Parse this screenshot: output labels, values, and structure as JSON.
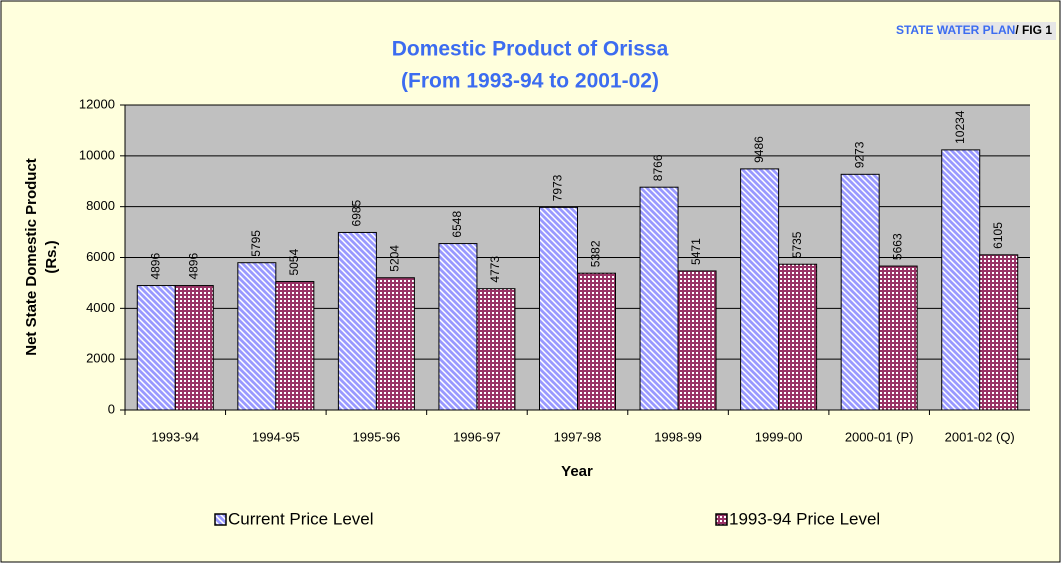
{
  "header": {
    "label": "STATE WATER PLAN",
    "fig": "/ FIG 1"
  },
  "chart_data": {
    "type": "bar",
    "title": "Domestic Product of Orissa",
    "subtitle": "(From 1993-94 to 2001-02)",
    "x_label": "Year",
    "y_label": "Net State Domestic Product",
    "y_label_unit": "(Rs.)",
    "categories": [
      "1993-94",
      "1994-95",
      "1995-96",
      "1996-97",
      "1997-98",
      "1998-99",
      "1999-00",
      "2000-01 (P)",
      "2001-02 (Q)"
    ],
    "series": [
      {
        "name": "Current Price Level",
        "color": "#9999ff",
        "values": [
          4896,
          5795,
          6985,
          6548,
          7973,
          8766,
          9486,
          9273,
          10234
        ]
      },
      {
        "name": "1993-94 Price Level",
        "color": "#993366",
        "values": [
          4896,
          5054,
          5204,
          4773,
          5382,
          5471,
          5735,
          5663,
          6105
        ]
      }
    ],
    "ylim": [
      0,
      12000
    ],
    "yticks": [
      0,
      2000,
      4000,
      6000,
      8000,
      10000,
      12000
    ],
    "grid": true,
    "legend": "bottom"
  }
}
